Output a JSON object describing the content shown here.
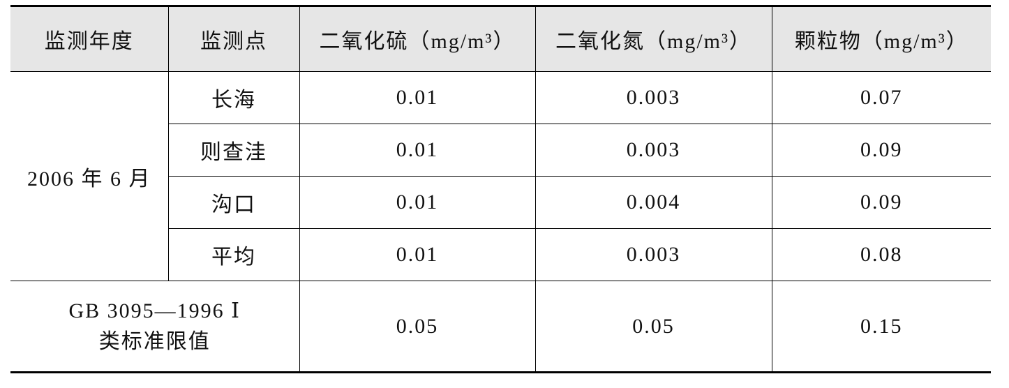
{
  "table": {
    "header": [
      "监测年度",
      "监测点",
      "二氧化硫（mg/m³）",
      "二氧化氮（mg/m³）",
      "颗粒物（mg/m³）"
    ],
    "period": "2006 年 6 月",
    "rows": [
      [
        "长海",
        "0.01",
        "0.003",
        "0.07"
      ],
      [
        "则查洼",
        "0.01",
        "0.003",
        "0.09"
      ],
      [
        "沟口",
        "0.01",
        "0.004",
        "0.09"
      ],
      [
        "平均",
        "0.01",
        "0.003",
        "0.08"
      ]
    ],
    "standard": {
      "label_lines": [
        "GB 3095—1996 Ⅰ",
        "类标准限值"
      ],
      "values": [
        "0.05",
        "0.05",
        "0.15"
      ]
    }
  }
}
